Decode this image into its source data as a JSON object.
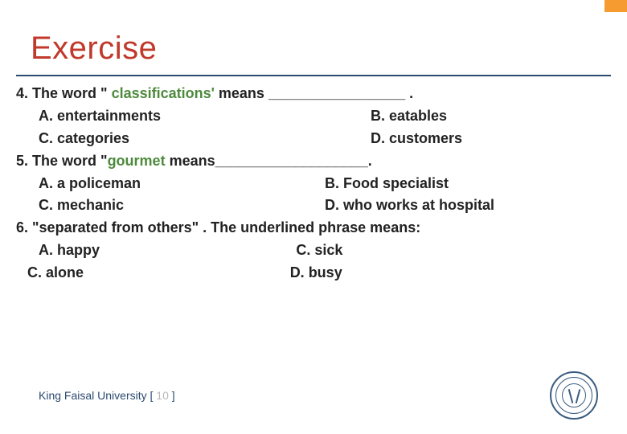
{
  "accent_color": "#f59b30",
  "rule_color": "#2b4a6f",
  "title": {
    "text": "Exercise",
    "color": "#c0392b"
  },
  "questions": {
    "q4": {
      "prefix": "4. ",
      "lead": "The word \" ",
      "keyword": "classifications'",
      "keyword_color": "#4e8a3c",
      "tail": " means _________________ .",
      "optA": "A. entertainments",
      "optB": "B. eatables",
      "optC": "C.  categories",
      "optD": "D. customers"
    },
    "q5": {
      "prefix": "5.   ",
      "lead": "The word \"",
      "keyword": "gourmet",
      "keyword_color": "#4e8a3c",
      "tail": "  means___________________.",
      "optA": "A. a policeman",
      "optB": "B.  Food specialist",
      "optC": "C. mechanic",
      "optD": "D. who works at hospital"
    },
    "q6": {
      "line": "6. \"separated from others\" . The underlined phrase means:",
      "optA": "A. happy",
      "optC_right": "C. sick",
      "optC_left": "C. alone",
      "optD": "D. busy"
    }
  },
  "footer": {
    "uni": "King Faisal University",
    "bracket_open": " [  ",
    "page": "10",
    "bracket_close": "  ]"
  }
}
